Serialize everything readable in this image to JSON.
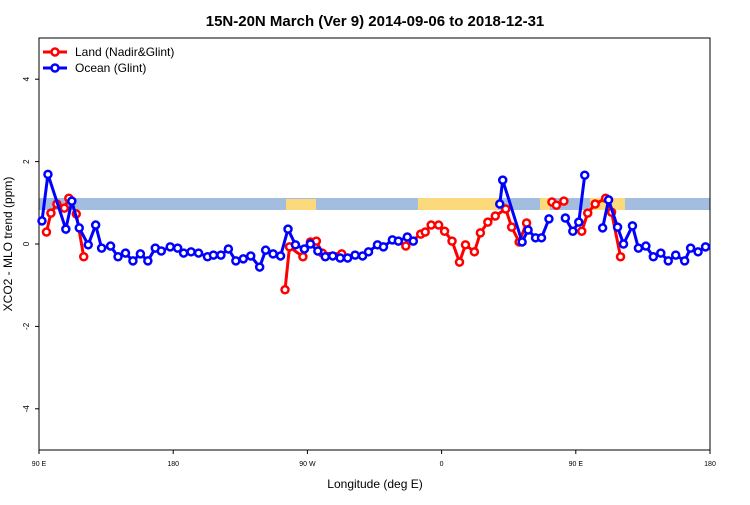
{
  "chart_data": {
    "type": "line",
    "title": "15N-20N March (Ver 9)   2014-09-06 to 2018-12-31",
    "x_label": "Longitude (deg E)",
    "y_label": "XCO2 - MLO trend (ppm)",
    "xlim": [
      90,
      540
    ],
    "xticks": [
      {
        "value": 90,
        "label": "90 E"
      },
      {
        "value": 180,
        "label": "180"
      },
      {
        "value": 270,
        "label": "90 W"
      },
      {
        "value": 360,
        "label": "0"
      },
      {
        "value": 450,
        "label": "90 E"
      },
      {
        "value": 540,
        "label": "180"
      }
    ],
    "ylim": [
      -5,
      5
    ],
    "yticks": [
      -4,
      -2,
      0,
      2,
      4
    ],
    "legend": "top-left",
    "series": [
      {
        "name": "Land (Nadir&Glint)",
        "color": "#ff0000",
        "x": [
          95,
          98,
          102,
          107,
          110,
          115,
          120,
          null,
          255,
          258,
          267,
          272,
          276,
          280,
          293,
          null,
          336,
          346,
          349,
          353,
          358,
          362,
          367,
          372,
          376,
          382,
          386,
          391,
          396,
          403,
          407,
          412,
          417,
          null,
          434,
          437,
          442,
          null,
          454,
          458,
          463,
          470,
          474,
          480
        ],
        "values": [
          0.29,
          0.75,
          0.97,
          0.87,
          1.11,
          0.73,
          -0.31,
          null,
          -1.11,
          -0.07,
          -0.31,
          0.05,
          0.07,
          -0.22,
          -0.24,
          null,
          -0.05,
          0.24,
          0.29,
          0.46,
          0.46,
          0.31,
          0.07,
          -0.44,
          -0.02,
          -0.19,
          0.27,
          0.53,
          0.68,
          0.85,
          0.41,
          0.05,
          0.51,
          null,
          1.02,
          0.94,
          1.04,
          null,
          0.31,
          0.75,
          0.97,
          1.11,
          0.77,
          -0.31
        ]
      },
      {
        "name": "Ocean (Glint)",
        "color": "#0000ff",
        "x": [
          92,
          96,
          108,
          112,
          117,
          123,
          128,
          132,
          138,
          143,
          148,
          153,
          158,
          163,
          168,
          172,
          178,
          183,
          187,
          192,
          197,
          203,
          207,
          212,
          217,
          222,
          227,
          232,
          238,
          242,
          247,
          252,
          257,
          262,
          268,
          272,
          277,
          282,
          287,
          292,
          297,
          302,
          307,
          311,
          317,
          321,
          327,
          331,
          337,
          341,
          null,
          399,
          401,
          414,
          418,
          423,
          427,
          432,
          null,
          443,
          448,
          452,
          456,
          null,
          468,
          472,
          478,
          482,
          488,
          492,
          497,
          502,
          507,
          512,
          517,
          523,
          527,
          532,
          537
        ],
        "values": [
          0.56,
          1.69,
          0.36,
          1.04,
          0.39,
          -0.02,
          0.46,
          -0.1,
          -0.05,
          -0.31,
          -0.22,
          -0.41,
          -0.24,
          -0.41,
          -0.1,
          -0.17,
          -0.07,
          -0.1,
          -0.22,
          -0.19,
          -0.22,
          -0.31,
          -0.27,
          -0.27,
          -0.12,
          -0.41,
          -0.36,
          -0.29,
          -0.56,
          -0.15,
          -0.24,
          -0.29,
          0.36,
          -0.02,
          -0.12,
          0,
          -0.17,
          -0.31,
          -0.29,
          -0.34,
          -0.34,
          -0.27,
          -0.29,
          -0.19,
          -0.02,
          -0.07,
          0.1,
          0.07,
          0.17,
          0.07,
          null,
          0.97,
          1.55,
          0.05,
          0.34,
          0.15,
          0.15,
          0.61,
          null,
          0.63,
          0.31,
          0.53,
          1.67,
          null,
          0.39,
          1.07,
          0.41,
          0,
          0.44,
          -0.1,
          -0.05,
          -0.31,
          -0.22,
          -0.41,
          -0.27,
          -0.41,
          -0.1,
          -0.19,
          -0.07
        ]
      }
    ]
  }
}
